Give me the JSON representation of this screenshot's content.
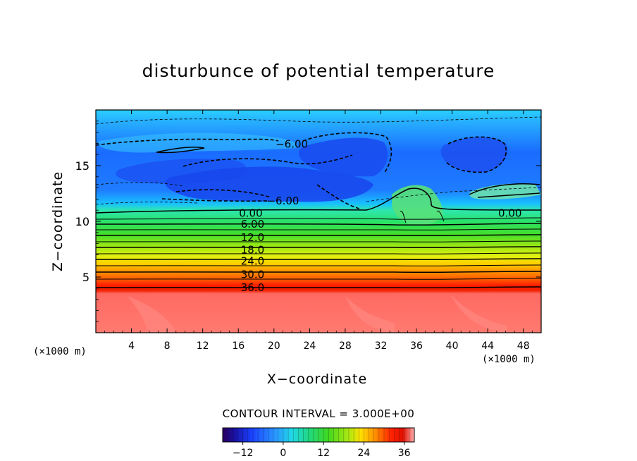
{
  "chart_data": {
    "type": "heatmap",
    "title": "disturbunce of potential temperature",
    "xlabel": "X−coordinate",
    "ylabel": "Z−coordinate",
    "x_unit_left": "(×1000 m)",
    "x_unit_right": "(×1000 m)",
    "x_ticks": [
      4,
      8,
      12,
      16,
      20,
      24,
      28,
      32,
      36,
      40,
      44,
      48
    ],
    "y_ticks": [
      5,
      10,
      15
    ],
    "xlim": [
      0,
      50
    ],
    "ylim": [
      0,
      20
    ],
    "contour_interval_text": "CONTOUR INTERVAL = 3.000E+00",
    "contour_levels_solid": [
      0,
      3,
      6,
      9,
      12,
      15,
      18,
      21,
      24,
      27,
      30,
      33,
      36
    ],
    "contour_levels_dashed": [
      -3,
      -6,
      -9
    ],
    "contour_labels": [
      {
        "text": "−6.00",
        "x": 22,
        "y": 17.0
      },
      {
        "text": "−6.00",
        "x": 21,
        "y": 11.9
      },
      {
        "text": "0.00",
        "x": 17.4,
        "y": 10.8
      },
      {
        "text": "0.00",
        "x": 46.5,
        "y": 10.8
      },
      {
        "text": "6.00",
        "x": 17.6,
        "y": 9.8
      },
      {
        "text": "12.0",
        "x": 17.6,
        "y": 8.6
      },
      {
        "text": "18.0",
        "x": 17.6,
        "y": 7.5
      },
      {
        "text": "24.0",
        "x": 17.6,
        "y": 6.5
      },
      {
        "text": "30.0",
        "x": 17.6,
        "y": 5.3
      },
      {
        "text": "36.0",
        "x": 17.6,
        "y": 4.1
      }
    ],
    "colorbar": {
      "range": [
        -18,
        39
      ],
      "ticks": [
        -12,
        0,
        12,
        24,
        36
      ],
      "tick_labels": [
        "−12",
        "0",
        "12",
        "24",
        "36"
      ],
      "colormap": "rainbow"
    },
    "grid": false
  },
  "colors": {
    "saturated_low": "#ff7a70",
    "warm_band": "#ff2000",
    "neutral": "#44d844",
    "cold": "#1a5cff"
  }
}
